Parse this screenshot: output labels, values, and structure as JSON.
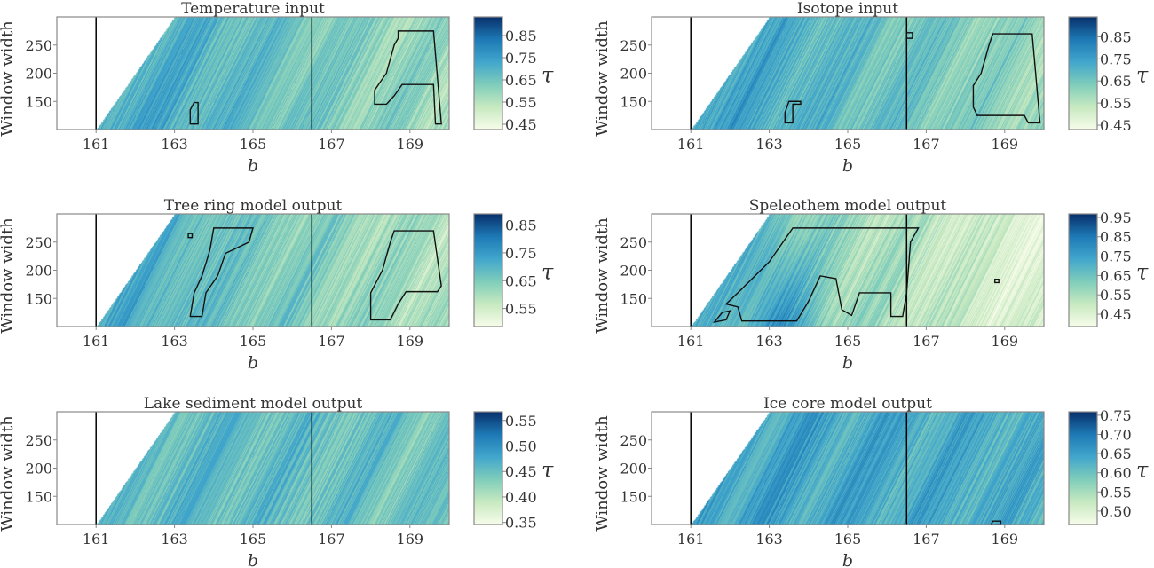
{
  "chart_data": {
    "type": "heatmap",
    "xlabel": "b",
    "ylabel": "Window width",
    "colorbar_label": "τ",
    "xlim": [
      160,
      170
    ],
    "ylim": [
      100,
      300
    ],
    "xticks": [
      "161",
      "163",
      "165",
      "167",
      "169"
    ],
    "yticks": [
      "150",
      "200",
      "250"
    ],
    "xtick_values": [
      161,
      163,
      165,
      167,
      169
    ],
    "ytick_values": [
      150,
      200,
      250
    ],
    "vertical_lines_b": [
      161,
      166.5
    ],
    "valid_region": "b >= 161 + (window_width - 100) / 100",
    "colormap": [
      "#f7fcea",
      "#c7e9c0",
      "#7fcdbb",
      "#41a6cc",
      "#1d79b5",
      "#08306b"
    ],
    "panels": [
      {
        "title": "Temperature input",
        "clim": [
          0.426,
          0.934
        ],
        "cbar_ticks": [
          "0.45",
          "0.55",
          "0.65",
          "0.75",
          "0.85"
        ],
        "level_left": 0.62,
        "level_right": 0.3,
        "seed": 1,
        "contours": [
          [
            [
              163.4,
              110
            ],
            [
              163.6,
              110
            ],
            [
              163.6,
              148
            ],
            [
              163.5,
              148
            ],
            [
              163.4,
              135
            ]
          ],
          [
            [
              168.7,
              275
            ],
            [
              169.6,
              275
            ],
            [
              169.8,
              110
            ],
            [
              169.65,
              110
            ],
            [
              169.6,
              180
            ],
            [
              168.8,
              180
            ],
            [
              168.6,
              160
            ],
            [
              168.4,
              145
            ],
            [
              168.1,
              145
            ],
            [
              168.1,
              170
            ],
            [
              168.4,
              200
            ],
            [
              168.6,
              250
            ],
            [
              168.7,
              262
            ]
          ]
        ]
      },
      {
        "title": "Isotope input",
        "clim": [
          0.43,
          0.94
        ],
        "cbar_ticks": [
          "0.45",
          "0.55",
          "0.65",
          "0.75",
          "0.85"
        ],
        "level_left": 0.62,
        "level_right": 0.32,
        "seed": 2,
        "contours": [
          [
            [
              163.4,
              112
            ],
            [
              163.6,
              112
            ],
            [
              163.6,
              145
            ],
            [
              163.8,
              145
            ],
            [
              163.8,
              150
            ],
            [
              163.5,
              150
            ],
            [
              163.4,
              130
            ]
          ],
          [
            [
              166.5,
              262
            ],
            [
              166.65,
              262
            ],
            [
              166.65,
              272
            ],
            [
              166.5,
              272
            ]
          ],
          [
            [
              168.7,
              270
            ],
            [
              169.7,
              270
            ],
            [
              169.9,
              112
            ],
            [
              169.6,
              112
            ],
            [
              169.5,
              125
            ],
            [
              168.3,
              125
            ],
            [
              168.2,
              140
            ],
            [
              168.2,
              178
            ],
            [
              168.4,
              200
            ],
            [
              168.6,
              250
            ]
          ]
        ]
      },
      {
        "title": "Tree ring model output",
        "clim": [
          0.485,
          0.89
        ],
        "cbar_ticks": [
          "0.55",
          "0.65",
          "0.75",
          "0.85"
        ],
        "level_left": 0.58,
        "level_right": 0.25,
        "seed": 3,
        "contours": [
          [
            [
              164.0,
              275
            ],
            [
              165.0,
              275
            ],
            [
              164.9,
              250
            ],
            [
              164.3,
              230
            ],
            [
              164.1,
              190
            ],
            [
              163.8,
              160
            ],
            [
              163.7,
              118
            ],
            [
              163.4,
              118
            ],
            [
              163.5,
              160
            ],
            [
              163.7,
              190
            ],
            [
              163.9,
              235
            ]
          ],
          [
            [
              163.35,
              258
            ],
            [
              163.45,
              258
            ],
            [
              163.45,
              265
            ],
            [
              163.35,
              265
            ]
          ],
          [
            [
              168.6,
              270
            ],
            [
              169.6,
              270
            ],
            [
              169.8,
              172
            ],
            [
              169.7,
              162
            ],
            [
              168.9,
              162
            ],
            [
              168.7,
              140
            ],
            [
              168.5,
              112
            ],
            [
              168.0,
              112
            ],
            [
              168.0,
              160
            ],
            [
              168.3,
              200
            ],
            [
              168.5,
              250
            ]
          ]
        ]
      },
      {
        "title": "Speleothem model output",
        "clim": [
          0.386,
          0.968
        ],
        "cbar_ticks": [
          "0.45",
          "0.55",
          "0.65",
          "0.75",
          "0.85",
          "0.95"
        ],
        "level_left": 0.5,
        "level_right": 0.08,
        "seed": 4,
        "contours": [
          [
            [
              163.6,
              275
            ],
            [
              166.8,
              275
            ],
            [
              166.6,
              250
            ],
            [
              166.5,
              160
            ],
            [
              166.4,
              118
            ],
            [
              166.1,
              118
            ],
            [
              166.1,
              160
            ],
            [
              165.3,
              160
            ],
            [
              165.1,
              120
            ],
            [
              164.85,
              130
            ],
            [
              164.7,
              185
            ],
            [
              164.3,
              190
            ],
            [
              164.0,
              145
            ],
            [
              163.7,
              110
            ],
            [
              162.3,
              110
            ],
            [
              162.2,
              135
            ],
            [
              161.9,
              140
            ],
            [
              162.2,
              160
            ],
            [
              163.0,
              215
            ]
          ],
          [
            [
              161.6,
              108
            ],
            [
              161.8,
              125
            ],
            [
              162.0,
              128
            ],
            [
              161.9,
              112
            ]
          ],
          [
            [
              168.75,
              178
            ],
            [
              168.85,
              178
            ],
            [
              168.85,
              184
            ],
            [
              168.75,
              184
            ]
          ]
        ]
      },
      {
        "title": "Lake sediment model output",
        "clim": [
          0.346,
          0.567
        ],
        "cbar_ticks": [
          "0.35",
          "0.40",
          "0.45",
          "0.50",
          "0.55"
        ],
        "level_left": 0.5,
        "level_right": 0.45,
        "seed": 5,
        "contours": []
      },
      {
        "title": "Ice core model output",
        "clim": [
          0.465,
          0.759
        ],
        "cbar_ticks": [
          "0.50",
          "0.55",
          "0.60",
          "0.65",
          "0.70",
          "0.75"
        ],
        "level_left": 0.62,
        "level_right": 0.55,
        "seed": 6,
        "contours": [
          [
            [
              168.65,
              100
            ],
            [
              168.7,
              106
            ],
            [
              168.9,
              106
            ],
            [
              168.9,
              100
            ]
          ]
        ]
      }
    ]
  }
}
